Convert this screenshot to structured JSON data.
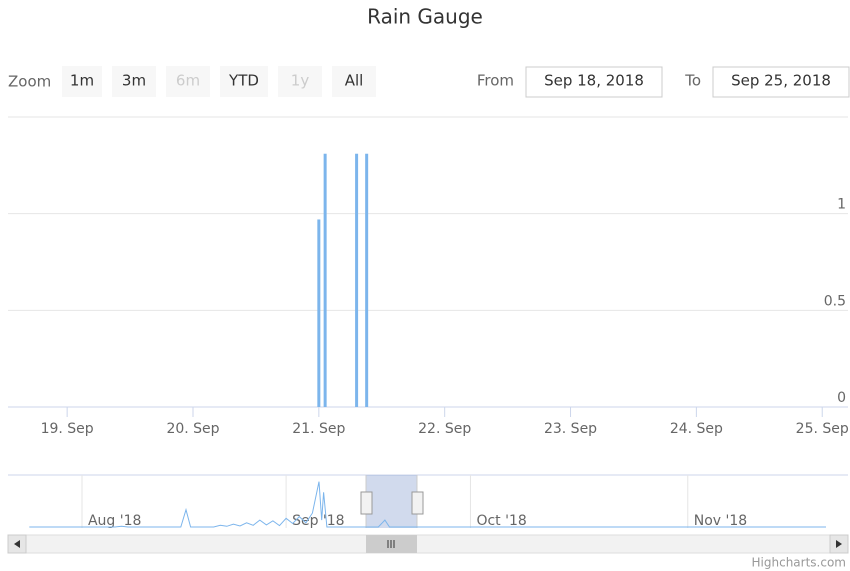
{
  "chart_data": {
    "type": "column",
    "title": "Rain Gauge",
    "zoom": {
      "label": "Zoom",
      "buttons": [
        {
          "text": "1m",
          "enabled": true
        },
        {
          "text": "3m",
          "enabled": true
        },
        {
          "text": "6m",
          "enabled": false
        },
        {
          "text": "YTD",
          "enabled": true
        },
        {
          "text": "1y",
          "enabled": false
        },
        {
          "text": "All",
          "enabled": true
        }
      ]
    },
    "range": {
      "from_label": "From",
      "from": "Sep 18, 2018",
      "to_label": "To",
      "to": "Sep 25, 2018"
    },
    "x": [
      21.0,
      21.05,
      21.3,
      21.38
    ],
    "values": [
      0.97,
      1.31,
      1.31,
      1.31
    ],
    "color": "#7cb5ec",
    "xlim": [
      18.53,
      25.03
    ],
    "xticks": [
      {
        "value": 19,
        "label": "19. Sep"
      },
      {
        "value": 20,
        "label": "20. Sep"
      },
      {
        "value": 21,
        "label": "21. Sep"
      },
      {
        "value": 22,
        "label": "22. Sep"
      },
      {
        "value": 23,
        "label": "23. Sep"
      },
      {
        "value": 24,
        "label": "24. Sep"
      },
      {
        "value": 25,
        "label": "25. Sep"
      }
    ],
    "ylim": [
      0,
      1.5
    ],
    "yticks": [
      0,
      0.5,
      1
    ],
    "grid": true,
    "navigator": {
      "x": [
        -8,
        5,
        6,
        7,
        15,
        15.8,
        16.5,
        20,
        21,
        22,
        23,
        24,
        25,
        26,
        27,
        28,
        29,
        30,
        31,
        32,
        33,
        34,
        35,
        36,
        36.4,
        36.7,
        37.2,
        45,
        46,
        46.7,
        113
      ],
      "values": [
        0,
        0,
        0.02,
        0,
        0,
        0.5,
        0,
        0,
        0.05,
        0.02,
        0.08,
        0.03,
        0.12,
        0.05,
        0.2,
        0.06,
        0.18,
        0.04,
        0.25,
        0.1,
        0.3,
        0.12,
        0.4,
        1.31,
        0.2,
        1.0,
        0,
        0,
        0.2,
        0,
        0
      ],
      "xlim": [
        -8.2,
        113.3
      ],
      "ylim": [
        0,
        1.5
      ],
      "xticks": [
        {
          "value": 0,
          "label": "Aug '18"
        },
        {
          "value": 31,
          "label": "Sep '18"
        },
        {
          "value": 59,
          "label": "Oct '18"
        },
        {
          "value": 92,
          "label": "Nov '18"
        }
      ]
    },
    "credits": "Highcharts.com"
  }
}
